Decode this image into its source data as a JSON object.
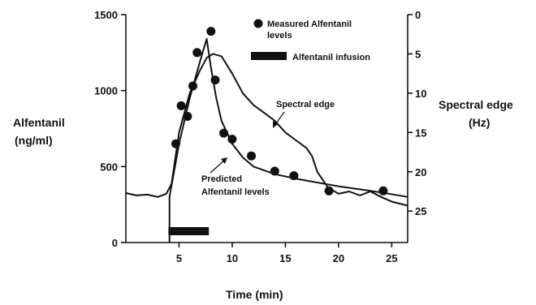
{
  "chart_data": {
    "type": "line",
    "xlabel": "Time (min)",
    "ylabel_left": [
      "Alfentanil",
      "(ng/ml)"
    ],
    "ylabel_right": [
      "Spectral edge",
      "(Hz)"
    ],
    "xlim": [
      0,
      26.5
    ],
    "ylim_left": [
      0,
      1500
    ],
    "ylim_right_inverted": [
      0,
      29
    ],
    "x_ticks": [
      5,
      10,
      15,
      20,
      25
    ],
    "y_left_ticks": [
      0,
      500,
      1000,
      1500
    ],
    "y_right_ticks": [
      0,
      5,
      10,
      15,
      20,
      25
    ],
    "grid": false,
    "legend": {
      "placement": "top-right",
      "entries": [
        {
          "marker": "dot",
          "label": [
            "Measured Alfentanil",
            "levels"
          ]
        },
        {
          "marker": "bar",
          "label": [
            "Alfentanil infusion"
          ]
        }
      ]
    },
    "annotations": {
      "spectral_edge": "Spectral edge",
      "predicted": [
        "Predicted",
        "Alfentanil levels"
      ]
    },
    "measured_alfentanil": {
      "axis": "left",
      "x": [
        4.7,
        5.2,
        5.8,
        6.3,
        6.7,
        8.0,
        8.4,
        9.2,
        10.0,
        11.8,
        14.0,
        15.8,
        19.1,
        24.2
      ],
      "y": [
        650,
        900,
        830,
        1030,
        1250,
        1390,
        1070,
        720,
        680,
        570,
        470,
        440,
        340,
        340
      ]
    },
    "predicted_alfentanil": {
      "axis": "left",
      "x": [
        4.1,
        5.0,
        6.0,
        7.0,
        7.6,
        8.0,
        8.5,
        9.0,
        10.0,
        11.0,
        12.0,
        14.0,
        16.0,
        18.0,
        20.0,
        22.0,
        24.0,
        26.5
      ],
      "y": [
        300,
        650,
        950,
        1200,
        1340,
        1150,
        950,
        800,
        650,
        560,
        500,
        450,
        420,
        395,
        370,
        350,
        330,
        300
      ]
    },
    "spectral_edge_series": {
      "axis": "right",
      "x": [
        0,
        1,
        2,
        3,
        3.8,
        4.3,
        5.0,
        6.0,
        7.0,
        7.6,
        8.2,
        9.0,
        10.0,
        11.0,
        12.0,
        13.0,
        14.0,
        15.0,
        16.0,
        17.0,
        17.5,
        18.0,
        19.0,
        20.0,
        21.0,
        22.0,
        23.0,
        24.0,
        25.0,
        26.5
      ],
      "y": [
        22.7,
        23.0,
        22.9,
        23.2,
        22.8,
        21.5,
        15.0,
        10.0,
        7.0,
        5.5,
        5.0,
        5.3,
        7.5,
        10.0,
        11.5,
        12.5,
        13.5,
        15.0,
        16.0,
        17.0,
        18.0,
        20.0,
        22.0,
        22.8,
        22.5,
        23.0,
        22.5,
        23.2,
        23.8,
        24.3
      ]
    },
    "infusion_bar": {
      "x_start": 4.0,
      "x_end": 7.8
    }
  }
}
